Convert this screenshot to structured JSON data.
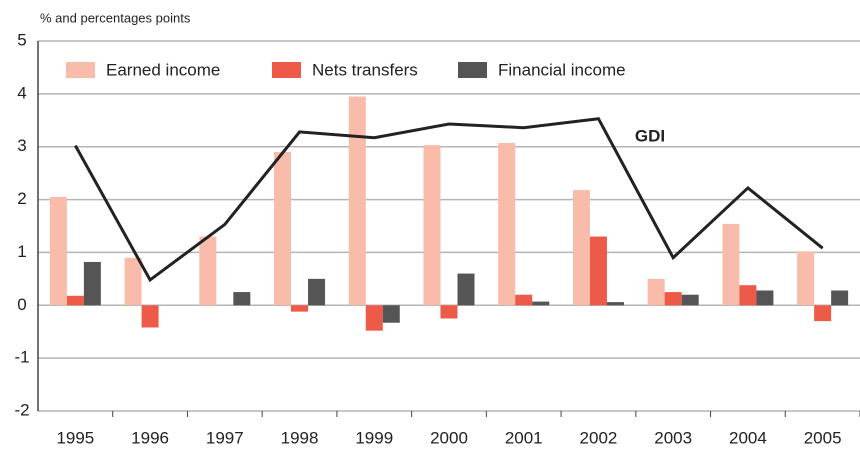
{
  "chart_data": {
    "type": "bar",
    "y_axis_label": "% and percentages points",
    "categories": [
      "1995",
      "1996",
      "1997",
      "1998",
      "1999",
      "2000",
      "2001",
      "2002",
      "2003",
      "2004",
      "2005"
    ],
    "series": [
      {
        "name": "Earned income",
        "color": "#f9bcaa",
        "values": [
          2.05,
          0.9,
          1.3,
          2.9,
          3.95,
          3.03,
          3.07,
          2.18,
          0.5,
          1.54,
          1.02
        ]
      },
      {
        "name": "Nets transfers",
        "color": "#ee5a48",
        "values": [
          0.18,
          -0.42,
          0,
          -0.12,
          -0.48,
          -0.25,
          0.2,
          1.3,
          0.25,
          0.38,
          -0.3
        ]
      },
      {
        "name": "Financial income",
        "color": "#555555",
        "values": [
          0.82,
          0,
          0.25,
          0.5,
          -0.33,
          0.6,
          0.07,
          0.06,
          0.2,
          0.28,
          0.28
        ]
      },
      {
        "name": "GDI",
        "type": "line",
        "color": "#222222",
        "values": [
          3.02,
          0.48,
          1.53,
          3.28,
          3.17,
          3.43,
          3.36,
          3.53,
          0.9,
          2.22,
          1.08
        ]
      }
    ],
    "ylim": [
      -2,
      5
    ],
    "yticks": [
      -2,
      -1,
      0,
      1,
      2,
      3,
      4,
      5
    ],
    "grid": true,
    "legend": "top-left"
  }
}
